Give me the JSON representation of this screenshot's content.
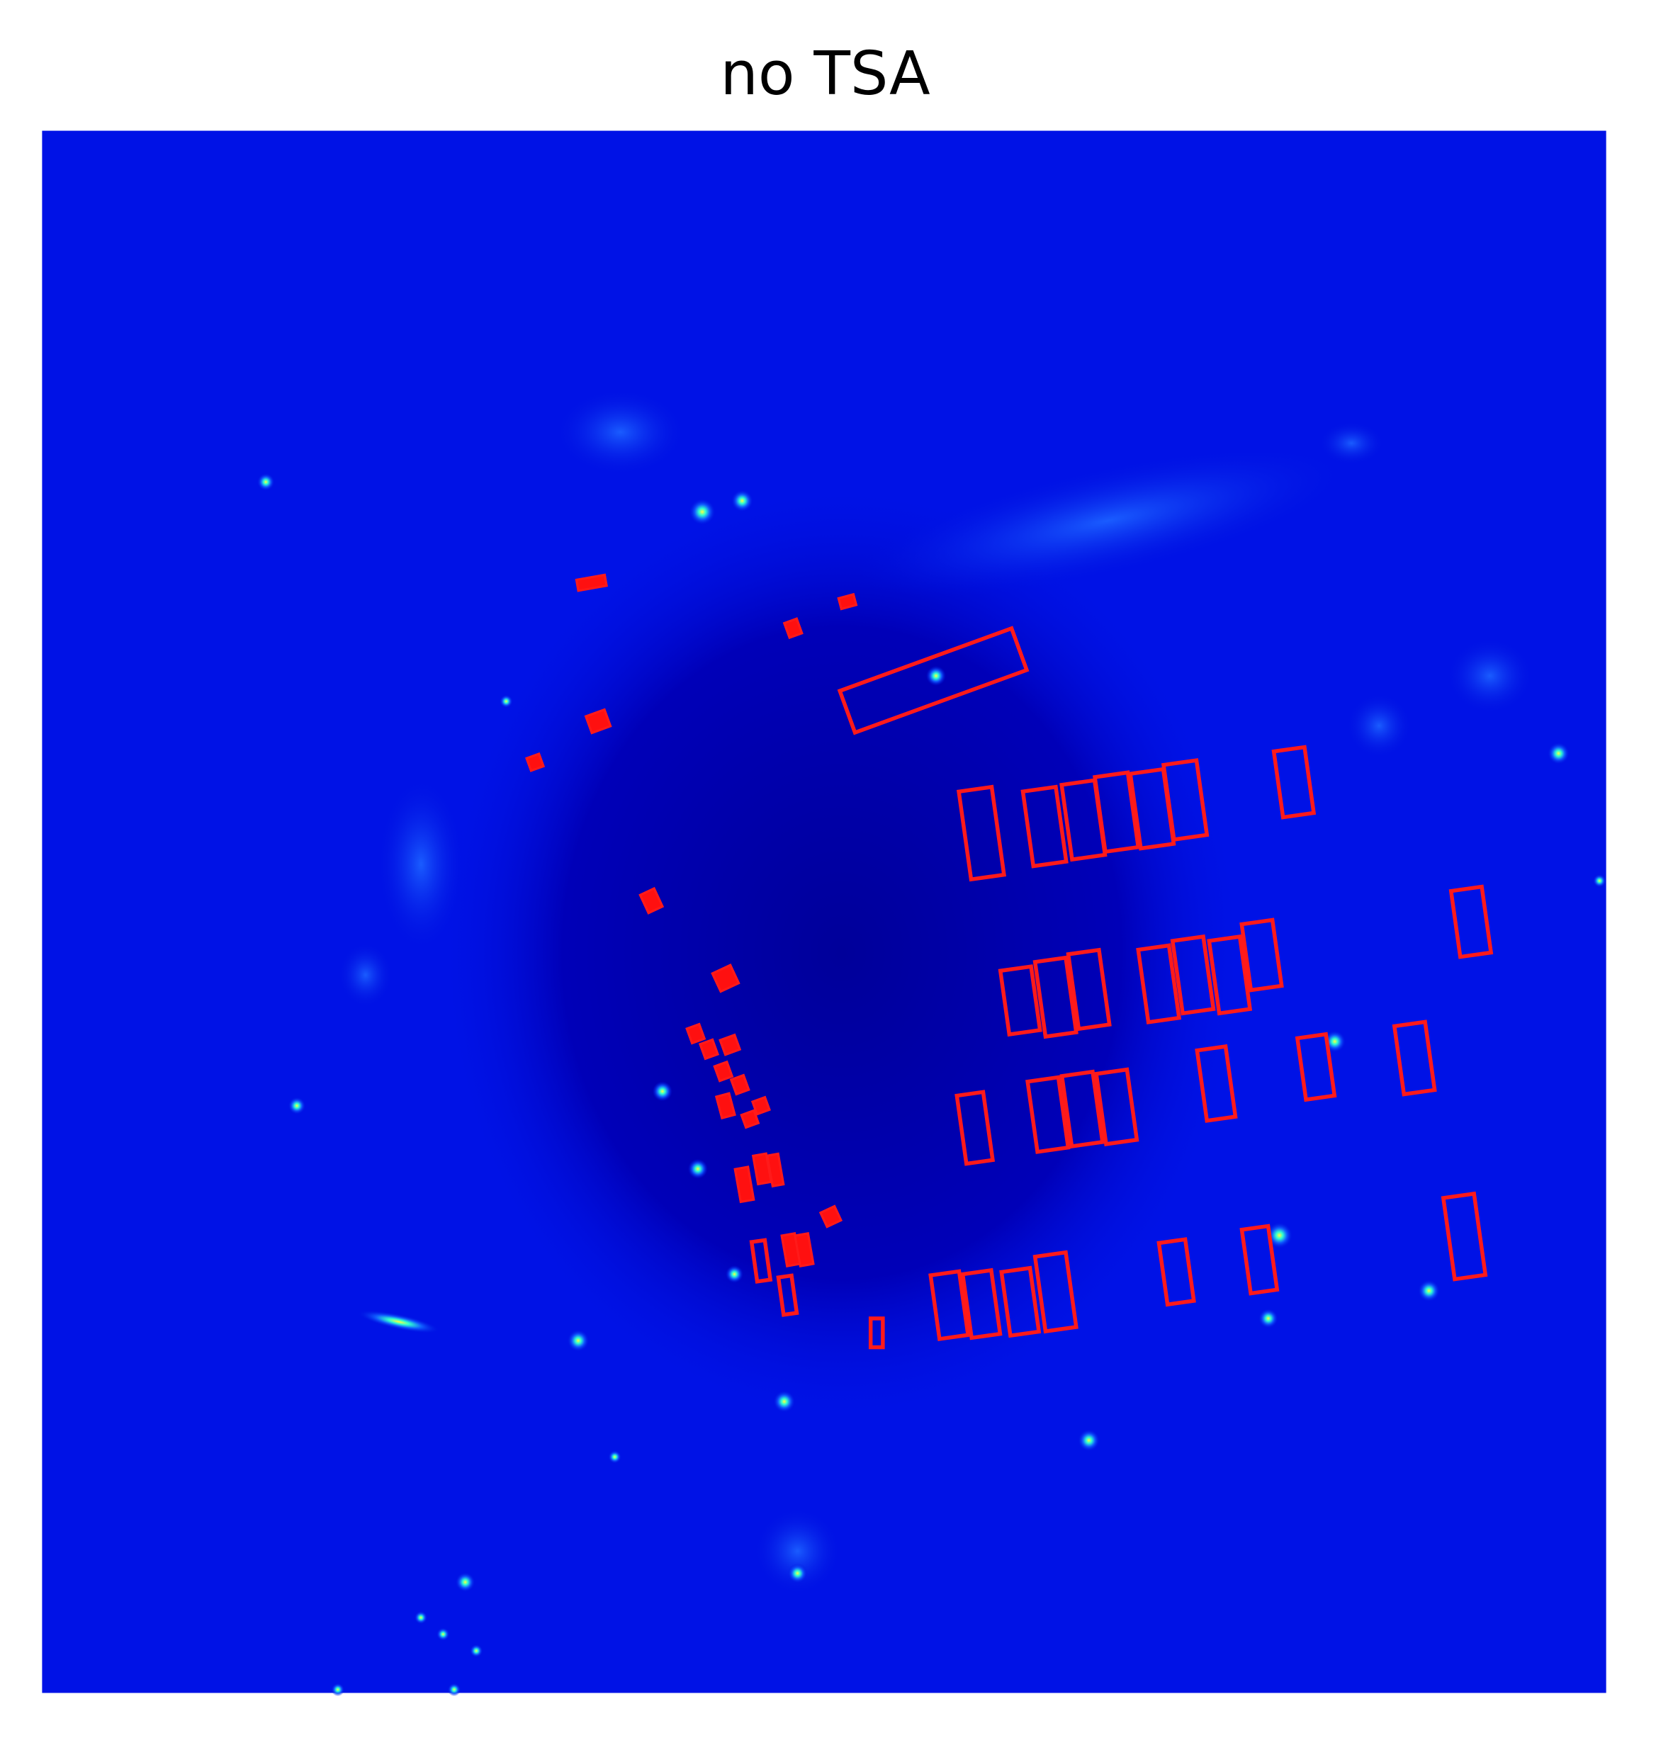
{
  "title": "no TSA"
}
